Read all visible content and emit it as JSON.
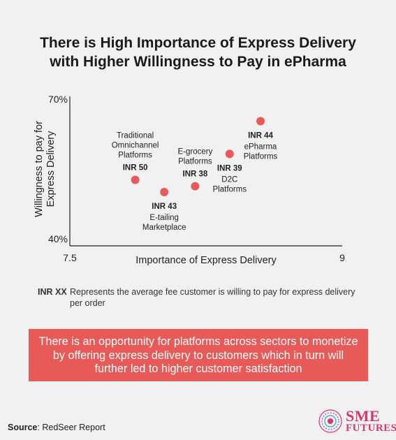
{
  "title_lines": [
    "There is High Importance of Express Delivery",
    "with Higher Willingness to Pay in ePharma"
  ],
  "chart_data": {
    "type": "scatter",
    "xlabel": "Importance of Express Delivery",
    "ylabel_lines": [
      "Willingness to pay for",
      "Express Delivery"
    ],
    "xlim": [
      7.5,
      9
    ],
    "ylim": [
      40,
      70
    ],
    "x_tick_labels": [
      "7.5",
      "9"
    ],
    "y_tick_labels": [
      "70%",
      "40%"
    ],
    "point_color": "#e85a58",
    "points": [
      {
        "x": 7.86,
        "y": 53.5,
        "fee": "INR 50",
        "label_lines": [
          "Traditional",
          "Omnichannel",
          "Platforms"
        ],
        "label_pos": "above"
      },
      {
        "x": 8.02,
        "y": 51.0,
        "fee": "INR 43",
        "label_lines": [
          "E-tailing",
          "Marketplace"
        ],
        "label_pos": "below"
      },
      {
        "x": 8.19,
        "y": 52.2,
        "fee": "INR 38",
        "label_lines": [
          "E-grocery",
          "Platforms"
        ],
        "label_pos": "above"
      },
      {
        "x": 8.38,
        "y": 58.8,
        "fee": "INR 39",
        "label_lines": [
          "D2C",
          "Platforms"
        ],
        "label_pos": "below"
      },
      {
        "x": 8.55,
        "y": 65.5,
        "fee": "INR 44",
        "label_lines": [
          "ePharma",
          "Platforms"
        ],
        "label_pos": "below"
      }
    ]
  },
  "legend": {
    "key": "INR XX",
    "text": "Represents the average fee customer is willing to pay for express delivery per order"
  },
  "callout": "There is an opportunity for platforms across sectors to monetize by offering express delivery to customers which in turn will further led to higher customer satisfaction",
  "source": {
    "label": "Source",
    "text": ": RedSeer Report"
  },
  "logo": {
    "line1": "SME",
    "line2": "FUTURES"
  }
}
